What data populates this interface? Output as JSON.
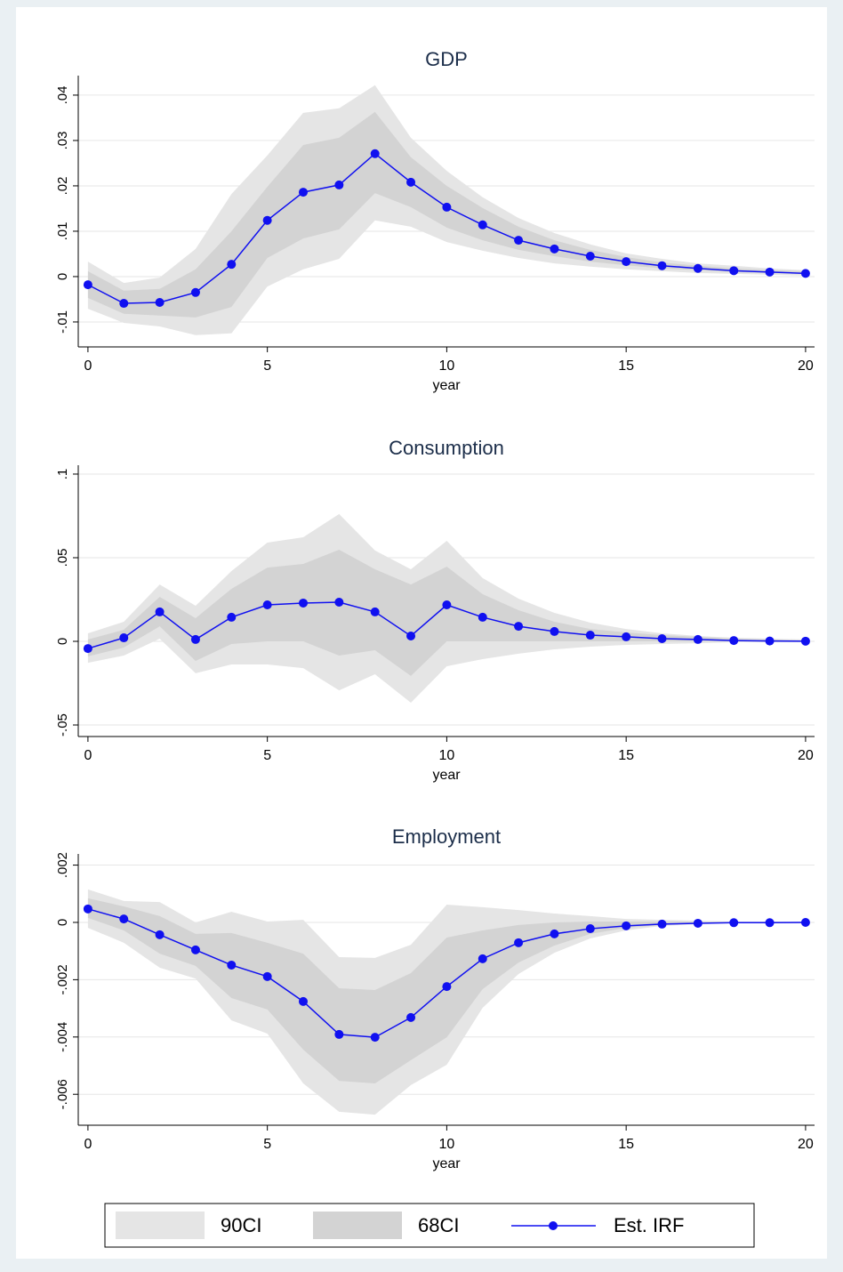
{
  "chart_data": [
    {
      "type": "line",
      "title": "GDP",
      "xlabel": "year",
      "x": [
        0,
        1,
        2,
        3,
        4,
        5,
        6,
        7,
        8,
        9,
        10,
        11,
        12,
        13,
        14,
        15,
        16,
        17,
        18,
        19,
        20
      ],
      "xlim": [
        -0.27,
        20.25
      ],
      "xticks": [
        0,
        5,
        10,
        15,
        20
      ],
      "ylim": [
        -0.0155,
        0.0443
      ],
      "yticks": [
        {
          "value": -0.01,
          "label": "-.01"
        },
        0,
        {
          "value": 0.01,
          "label": ".01"
        },
        {
          "value": 0.02,
          "label": ".02"
        },
        {
          "value": 0.03,
          "label": ".03"
        },
        {
          "value": 0.04,
          "label": ".04"
        }
      ],
      "grid": true,
      "series": [
        {
          "name": "90CI",
          "color": "#e5e5e5",
          "upper": [
            0.0033,
            -0.0014,
            -0.0002,
            0.0061,
            0.0182,
            0.0267,
            0.0361,
            0.0371,
            0.0422,
            0.0306,
            0.0233,
            0.0175,
            0.0129,
            0.0096,
            0.0071,
            0.0051,
            0.0039,
            0.0029,
            0.0024,
            0.0018,
            0.0014
          ],
          "lower": [
            -0.0071,
            -0.0102,
            -0.011,
            -0.0129,
            -0.0125,
            -0.0022,
            0.0016,
            0.0039,
            0.0124,
            0.011,
            0.0076,
            0.0057,
            0.0041,
            0.0029,
            0.0022,
            0.0016,
            0.0012,
            0.0008,
            0.0006,
            0.0004,
            0.0002
          ]
        },
        {
          "name": "68CI",
          "color": "#d3d3d3",
          "upper": [
            0.0012,
            -0.0031,
            -0.0027,
            0.0016,
            0.01,
            0.0198,
            0.029,
            0.0306,
            0.0363,
            0.0263,
            0.02,
            0.0151,
            0.011,
            0.008,
            0.0059,
            0.0043,
            0.0031,
            0.0024,
            0.0018,
            0.0014,
            0.0012
          ],
          "lower": [
            -0.0047,
            -0.0082,
            -0.0086,
            -0.009,
            -0.0067,
            0.0041,
            0.0084,
            0.0104,
            0.0184,
            0.0153,
            0.0108,
            0.008,
            0.0059,
            0.0045,
            0.0033,
            0.0025,
            0.0018,
            0.0014,
            0.001,
            0.0008,
            0.0006
          ]
        },
        {
          "name": "Est. IRF",
          "color": "#1010f0",
          "values": [
            -0.0018,
            -0.0059,
            -0.0057,
            -0.0035,
            0.0027,
            0.0124,
            0.0186,
            0.0202,
            0.0271,
            0.0208,
            0.0153,
            0.0114,
            0.008,
            0.0061,
            0.0045,
            0.0033,
            0.0024,
            0.0018,
            0.0013,
            0.001,
            0.0007
          ]
        }
      ]
    },
    {
      "type": "line",
      "title": "Consumption",
      "xlabel": "year",
      "x": [
        0,
        1,
        2,
        3,
        4,
        5,
        6,
        7,
        8,
        9,
        10,
        11,
        12,
        13,
        14,
        15,
        16,
        17,
        18,
        19,
        20
      ],
      "xlim": [
        -0.27,
        20.25
      ],
      "xticks": [
        0,
        5,
        10,
        15,
        20
      ],
      "ylim": [
        -0.0569,
        0.1053
      ],
      "yticks": [
        {
          "value": -0.05,
          "label": "-.05"
        },
        0,
        {
          "value": 0.05,
          "label": ".05"
        },
        {
          "value": 0.1,
          "label": ".1"
        }
      ],
      "grid": true,
      "series": [
        {
          "color": "#e5e5e5",
          "upper": [
            0.0048,
            0.0117,
            0.034,
            0.0213,
            0.042,
            0.059,
            0.0622,
            0.0761,
            0.0543,
            0.0431,
            0.0601,
            0.0378,
            0.0255,
            0.017,
            0.0112,
            0.0074,
            0.0048,
            0.0032,
            0.0021,
            0.0016,
            0.0011
          ],
          "lower": [
            -0.0128,
            -0.0085,
            0.0016,
            -0.0191,
            -0.0138,
            -0.0138,
            -0.016,
            -0.0293,
            -0.0197,
            -0.0367,
            -0.0149,
            -0.0106,
            -0.0074,
            -0.0048,
            -0.0032,
            -0.0021,
            -0.0016,
            -0.0011,
            -0.0005,
            -0.0005,
            -0.0005
          ]
        },
        {
          "color": "#d3d3d3",
          "upper": [
            0.0011,
            0.0069,
            0.0266,
            0.0138,
            0.0314,
            0.0441,
            0.0463,
            0.0548,
            0.0431,
            0.034,
            0.0447,
            0.0282,
            0.0186,
            0.0117,
            0.0074,
            0.0053,
            0.0037,
            0.0027,
            0.0016,
            0.0011,
            0.0005
          ],
          "lower": [
            -0.009,
            -0.0037,
            0.009,
            -0.0117,
            -0.0016,
            0,
            0,
            -0.0085,
            -0.0053,
            -0.0207,
            0,
            0,
            0,
            0,
            0,
            0,
            0,
            0,
            0,
            0,
            0
          ]
        },
        {
          "color": "#1010f0",
          "values": [
            -0.0043,
            0.0021,
            0.0176,
            0.0011,
            0.0144,
            0.0218,
            0.0229,
            0.0234,
            0.0176,
            0.0032,
            0.0218,
            0.0144,
            0.009,
            0.0059,
            0.0037,
            0.0027,
            0.0016,
            0.0011,
            0.0005,
            0.0002,
            0.0001
          ]
        }
      ]
    },
    {
      "type": "line",
      "title": "Employment",
      "xlabel": "year",
      "x": [
        0,
        1,
        2,
        3,
        4,
        5,
        6,
        7,
        8,
        9,
        10,
        11,
        12,
        13,
        14,
        15,
        16,
        17,
        18,
        19,
        20
      ],
      "xlim": [
        -0.27,
        20.25
      ],
      "xticks": [
        0,
        5,
        10,
        15,
        20
      ],
      "ylim": [
        -0.00708,
        0.00239
      ],
      "yticks": [
        {
          "value": -0.006,
          "label": "-.006"
        },
        {
          "value": -0.004,
          "label": "-.004"
        },
        {
          "value": -0.002,
          "label": "-.002"
        },
        0,
        {
          "value": 0.002,
          "label": ".002"
        }
      ],
      "grid": true,
      "series": [
        {
          "color": "#e5e5e5",
          "upper": [
            0.00115,
            0.00075,
            0.00071,
            0,
            0.00037,
            3e-05,
            9e-05,
            -0.00121,
            -0.00124,
            -0.00078,
            0.00062,
            0.00053,
            0.00043,
            0.00031,
            0.00022,
            0.00012,
            9e-05,
            6e-05,
            3e-05,
            3e-05,
            3e-05
          ],
          "lower": [
            -0.00019,
            -0.00071,
            -0.00158,
            -0.00196,
            -0.00342,
            -0.00388,
            -0.00562,
            -0.00661,
            -0.00671,
            -0.00568,
            -0.00497,
            -0.00298,
            -0.0018,
            -0.00106,
            -0.00056,
            -0.00028,
            -0.00012,
            -6e-05,
            -3e-05,
            -3e-05,
            -3e-05
          ]
        },
        {
          "color": "#d3d3d3",
          "upper": [
            0.00084,
            0.00056,
            0.00022,
            -0.0004,
            -0.00037,
            -0.00071,
            -0.00109,
            -0.0023,
            -0.00236,
            -0.00177,
            -0.00053,
            -0.00028,
            -9e-05,
            0,
            3e-05,
            3e-05,
            3e-05,
            2e-05,
            2e-05,
            1e-05,
            1e-05
          ],
          "lower": [
            0.00016,
            -0.00028,
            -0.00109,
            -0.00152,
            -0.00264,
            -0.00304,
            -0.00444,
            -0.00553,
            -0.00562,
            -0.00481,
            -0.00401,
            -0.00233,
            -0.0014,
            -0.00081,
            -0.0004,
            -0.00019,
            -9e-05,
            -3e-05,
            -3e-05,
            -3e-05,
            0
          ]
        },
        {
          "color": "#1010f0",
          "values": [
            0.00047,
            0.00012,
            -0.00043,
            -0.00096,
            -0.00149,
            -0.00189,
            -0.00276,
            -0.00391,
            -0.00401,
            -0.00332,
            -0.00224,
            -0.00127,
            -0.00071,
            -0.0004,
            -0.00022,
            -0.00012,
            -6e-05,
            -3e-05,
            -1e-05,
            -1e-05,
            0
          ]
        }
      ]
    }
  ]
}
